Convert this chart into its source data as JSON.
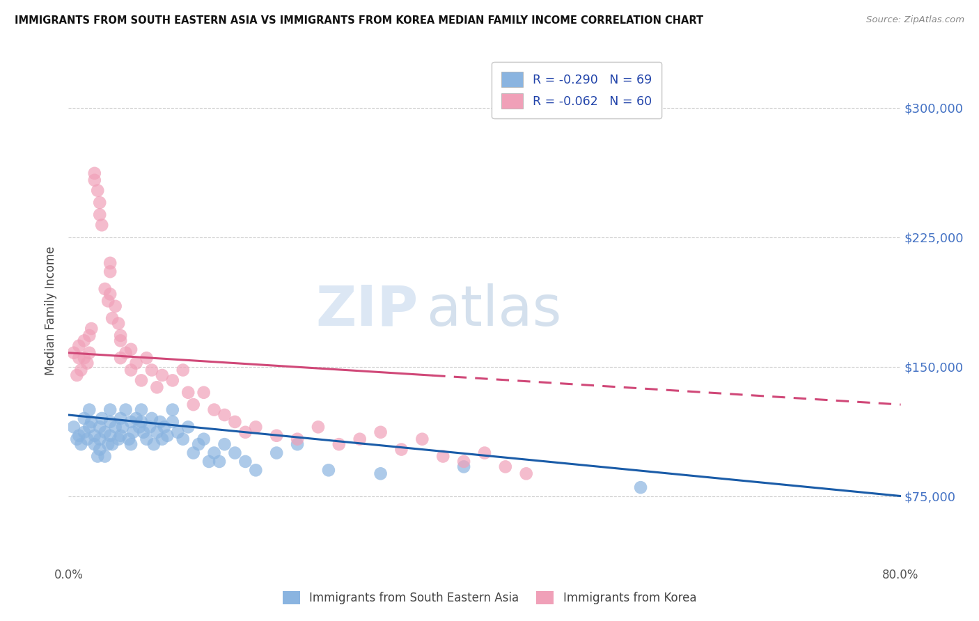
{
  "title": "IMMIGRANTS FROM SOUTH EASTERN ASIA VS IMMIGRANTS FROM KOREA MEDIAN FAMILY INCOME CORRELATION CHART",
  "source": "Source: ZipAtlas.com",
  "ylabel": "Median Family Income",
  "yticks": [
    75000,
    150000,
    225000,
    300000
  ],
  "ytick_labels": [
    "$75,000",
    "$150,000",
    "$225,000",
    "$300,000"
  ],
  "xlim": [
    0.0,
    0.8
  ],
  "ylim": [
    35000,
    330000
  ],
  "legend_r1": "R = -0.290",
  "legend_n1": "N = 69",
  "legend_r2": "R = -0.062",
  "legend_n2": "N = 60",
  "color_blue": "#8ab4e0",
  "color_pink": "#f0a0b8",
  "color_blue_line": "#1a5ca8",
  "color_pink_line": "#d04878",
  "watermark_zip": "ZIP",
  "watermark_atlas": "atlas",
  "sea_x": [
    0.005,
    0.008,
    0.01,
    0.012,
    0.015,
    0.015,
    0.018,
    0.02,
    0.02,
    0.022,
    0.025,
    0.025,
    0.028,
    0.03,
    0.03,
    0.03,
    0.032,
    0.035,
    0.035,
    0.038,
    0.04,
    0.04,
    0.04,
    0.042,
    0.045,
    0.048,
    0.05,
    0.05,
    0.052,
    0.055,
    0.058,
    0.06,
    0.06,
    0.062,
    0.065,
    0.068,
    0.07,
    0.07,
    0.072,
    0.075,
    0.078,
    0.08,
    0.082,
    0.085,
    0.088,
    0.09,
    0.092,
    0.095,
    0.1,
    0.1,
    0.105,
    0.11,
    0.115,
    0.12,
    0.125,
    0.13,
    0.135,
    0.14,
    0.145,
    0.15,
    0.16,
    0.17,
    0.18,
    0.2,
    0.22,
    0.25,
    0.3,
    0.38,
    0.55
  ],
  "sea_y": [
    115000,
    108000,
    110000,
    105000,
    120000,
    112000,
    108000,
    125000,
    115000,
    118000,
    110000,
    105000,
    98000,
    115000,
    108000,
    102000,
    120000,
    112000,
    98000,
    105000,
    118000,
    110000,
    125000,
    105000,
    115000,
    108000,
    120000,
    110000,
    115000,
    125000,
    108000,
    118000,
    105000,
    112000,
    120000,
    115000,
    125000,
    118000,
    112000,
    108000,
    115000,
    120000,
    105000,
    112000,
    118000,
    108000,
    115000,
    110000,
    125000,
    118000,
    112000,
    108000,
    115000,
    100000,
    105000,
    108000,
    95000,
    100000,
    95000,
    105000,
    100000,
    95000,
    90000,
    100000,
    105000,
    90000,
    88000,
    92000,
    80000
  ],
  "kor_x": [
    0.005,
    0.008,
    0.01,
    0.01,
    0.012,
    0.015,
    0.015,
    0.018,
    0.02,
    0.02,
    0.022,
    0.025,
    0.025,
    0.028,
    0.03,
    0.03,
    0.032,
    0.035,
    0.038,
    0.04,
    0.04,
    0.04,
    0.042,
    0.045,
    0.048,
    0.05,
    0.05,
    0.05,
    0.055,
    0.06,
    0.06,
    0.065,
    0.07,
    0.075,
    0.08,
    0.085,
    0.09,
    0.1,
    0.11,
    0.115,
    0.12,
    0.13,
    0.14,
    0.15,
    0.16,
    0.17,
    0.18,
    0.2,
    0.22,
    0.24,
    0.26,
    0.28,
    0.3,
    0.32,
    0.34,
    0.36,
    0.38,
    0.4,
    0.42,
    0.44
  ],
  "kor_y": [
    158000,
    145000,
    162000,
    155000,
    148000,
    165000,
    155000,
    152000,
    168000,
    158000,
    172000,
    258000,
    262000,
    252000,
    245000,
    238000,
    232000,
    195000,
    188000,
    205000,
    192000,
    210000,
    178000,
    185000,
    175000,
    165000,
    155000,
    168000,
    158000,
    148000,
    160000,
    152000,
    142000,
    155000,
    148000,
    138000,
    145000,
    142000,
    148000,
    135000,
    128000,
    135000,
    125000,
    122000,
    118000,
    112000,
    115000,
    110000,
    108000,
    115000,
    105000,
    108000,
    112000,
    102000,
    108000,
    98000,
    95000,
    100000,
    92000,
    88000
  ],
  "trendline_sea_x0": 0.0,
  "trendline_sea_x1": 0.8,
  "trendline_sea_y0": 122000,
  "trendline_sea_y1": 75000,
  "trendline_kor_x0": 0.0,
  "trendline_kor_x1": 0.8,
  "trendline_kor_y0": 158000,
  "trendline_kor_y1": 128000
}
